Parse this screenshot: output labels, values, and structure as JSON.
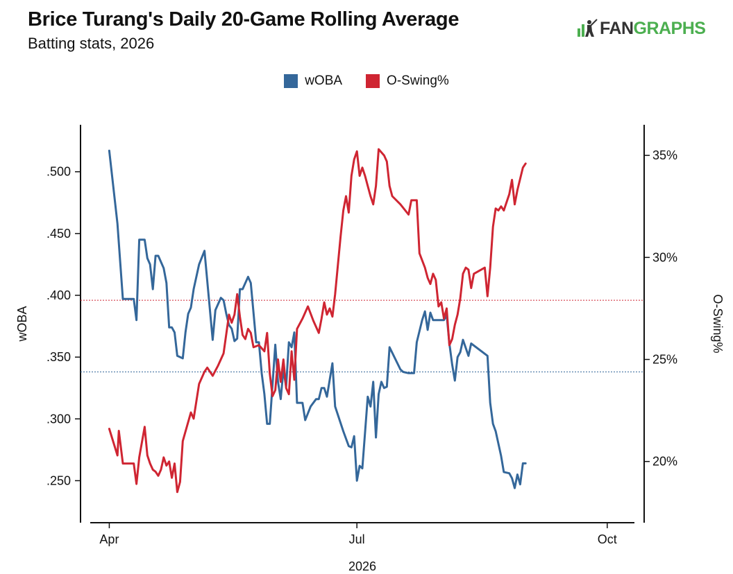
{
  "header": {
    "title": "Brice Turang's Daily 20-Game Rolling Average",
    "subtitle": "Batting stats, 2026",
    "logo_fan": "FAN",
    "logo_graphs": "GRAPHS"
  },
  "colors": {
    "woba": "#34679a",
    "oswing": "#cf2532"
  },
  "chart_data": {
    "type": "line",
    "title": "Brice Turang's Daily 20-Game Rolling Average",
    "subtitle": "Batting stats, 2026",
    "xlabel": "2026",
    "ylabel": "wOBA",
    "y2label": "O-Swing%",
    "x_ticks": [
      "Apr",
      "Jul",
      "Oct"
    ],
    "x_range": [
      -7,
      193
    ],
    "y_ticks": [
      ".250",
      ".300",
      ".350",
      ".400",
      ".450",
      ".500"
    ],
    "y_tick_values": [
      0.25,
      0.3,
      0.35,
      0.4,
      0.45,
      0.5
    ],
    "y_range": [
      0.216,
      0.538
    ],
    "y2_ticks": [
      "20%",
      "25%",
      "30%",
      "35%"
    ],
    "y2_tick_values": [
      20,
      25,
      30,
      35
    ],
    "y2_range": [
      17.0,
      36.5
    ],
    "legend_position": "top-center",
    "grid": false,
    "reference_lines": [
      {
        "series": "wOBA",
        "value": 0.338
      },
      {
        "series": "O-Swing%",
        "value": 27.9
      }
    ],
    "series": [
      {
        "name": "wOBA",
        "axis": "left",
        "points": [
          [
            0,
            0.517
          ],
          [
            3,
            0.458
          ],
          [
            5,
            0.397
          ],
          [
            9,
            0.397
          ],
          [
            10,
            0.38
          ],
          [
            11,
            0.445
          ],
          [
            13,
            0.445
          ],
          [
            14,
            0.43
          ],
          [
            15,
            0.425
          ],
          [
            16,
            0.405
          ],
          [
            17,
            0.432
          ],
          [
            18,
            0.432
          ],
          [
            20,
            0.422
          ],
          [
            21,
            0.41
          ],
          [
            22,
            0.374
          ],
          [
            23,
            0.374
          ],
          [
            24,
            0.37
          ],
          [
            25,
            0.351
          ],
          [
            27,
            0.349
          ],
          [
            28,
            0.37
          ],
          [
            29,
            0.385
          ],
          [
            30,
            0.39
          ],
          [
            31,
            0.405
          ],
          [
            33,
            0.425
          ],
          [
            35,
            0.436
          ],
          [
            38,
            0.364
          ],
          [
            39,
            0.388
          ],
          [
            41,
            0.398
          ],
          [
            42,
            0.396
          ],
          [
            43,
            0.385
          ],
          [
            44,
            0.376
          ],
          [
            45,
            0.373
          ],
          [
            46,
            0.363
          ],
          [
            47,
            0.365
          ],
          [
            48,
            0.405
          ],
          [
            49,
            0.405
          ],
          [
            51,
            0.415
          ],
          [
            52,
            0.41
          ],
          [
            54,
            0.362
          ],
          [
            55,
            0.362
          ],
          [
            56,
            0.337
          ],
          [
            57,
            0.32
          ],
          [
            58,
            0.296
          ],
          [
            59,
            0.296
          ],
          [
            61,
            0.36
          ],
          [
            62,
            0.33
          ],
          [
            63,
            0.316
          ],
          [
            64,
            0.34
          ],
          [
            65,
            0.326
          ],
          [
            66,
            0.362
          ],
          [
            67,
            0.358
          ],
          [
            68,
            0.37
          ],
          [
            69,
            0.313
          ],
          [
            71,
            0.313
          ],
          [
            72,
            0.299
          ],
          [
            74,
            0.31
          ],
          [
            76,
            0.316
          ],
          [
            77,
            0.316
          ],
          [
            78,
            0.325
          ],
          [
            79,
            0.325
          ],
          [
            80,
            0.318
          ],
          [
            82,
            0.345
          ],
          [
            83,
            0.31
          ],
          [
            86,
            0.29
          ],
          [
            88,
            0.278
          ],
          [
            89,
            0.277
          ],
          [
            90,
            0.286
          ],
          [
            91,
            0.25
          ],
          [
            92,
            0.262
          ],
          [
            93,
            0.26
          ],
          [
            95,
            0.318
          ],
          [
            96,
            0.31
          ],
          [
            97,
            0.33
          ],
          [
            98,
            0.285
          ],
          [
            99,
            0.32
          ],
          [
            100,
            0.33
          ],
          [
            101,
            0.325
          ],
          [
            102,
            0.326
          ],
          [
            103,
            0.358
          ],
          [
            107,
            0.34
          ],
          [
            108,
            0.338
          ],
          [
            110,
            0.337
          ],
          [
            112,
            0.337
          ],
          [
            113,
            0.362
          ],
          [
            115,
            0.38
          ],
          [
            116,
            0.387
          ],
          [
            117,
            0.372
          ],
          [
            118,
            0.386
          ],
          [
            119,
            0.38
          ],
          [
            123,
            0.38
          ],
          [
            124,
            0.384
          ],
          [
            125,
            0.361
          ],
          [
            126,
            0.344
          ],
          [
            127,
            0.331
          ],
          [
            128,
            0.35
          ],
          [
            129,
            0.354
          ],
          [
            130,
            0.364
          ],
          [
            132,
            0.351
          ],
          [
            133,
            0.361
          ],
          [
            139,
            0.351
          ],
          [
            140,
            0.313
          ],
          [
            141,
            0.296
          ],
          [
            142,
            0.29
          ],
          [
            144,
            0.27
          ],
          [
            145,
            0.257
          ],
          [
            147,
            0.256
          ],
          [
            148,
            0.252
          ],
          [
            149,
            0.244
          ],
          [
            150,
            0.255
          ],
          [
            151,
            0.247
          ],
          [
            152,
            0.264
          ],
          [
            153,
            0.264
          ]
        ]
      },
      {
        "name": "O-Swing%",
        "axis": "right",
        "points": [
          [
            0,
            21.6
          ],
          [
            3,
            20.3
          ],
          [
            3.5,
            21.5
          ],
          [
            5,
            19.9
          ],
          [
            9,
            19.9
          ],
          [
            10,
            18.9
          ],
          [
            11,
            20.2
          ],
          [
            13,
            21.7
          ],
          [
            14,
            20.3
          ],
          [
            15,
            19.9
          ],
          [
            16,
            19.6
          ],
          [
            17,
            19.5
          ],
          [
            18,
            19.3
          ],
          [
            19,
            19.6
          ],
          [
            20,
            20.2
          ],
          [
            21,
            19.8
          ],
          [
            22,
            20.0
          ],
          [
            23,
            19.2
          ],
          [
            24,
            19.9
          ],
          [
            25,
            18.5
          ],
          [
            26,
            19.0
          ],
          [
            27,
            21.0
          ],
          [
            30,
            22.4
          ],
          [
            31,
            22.1
          ],
          [
            33,
            23.8
          ],
          [
            35,
            24.4
          ],
          [
            36,
            24.6
          ],
          [
            38,
            24.2
          ],
          [
            40,
            24.7
          ],
          [
            42,
            25.3
          ],
          [
            44,
            27.2
          ],
          [
            45,
            26.8
          ],
          [
            46,
            27.2
          ],
          [
            47,
            28.2
          ],
          [
            48,
            27.1
          ],
          [
            49,
            26.2
          ],
          [
            50,
            26.0
          ],
          [
            51,
            26.5
          ],
          [
            52,
            26.3
          ],
          [
            53,
            25.6
          ],
          [
            55,
            25.7
          ],
          [
            57,
            25.4
          ],
          [
            58,
            26.3
          ],
          [
            59,
            24.3
          ],
          [
            60,
            23.2
          ],
          [
            61,
            23.5
          ],
          [
            62,
            25.0
          ],
          [
            63,
            23.9
          ],
          [
            64,
            25.0
          ],
          [
            65,
            23.6
          ],
          [
            66,
            23.3
          ],
          [
            67,
            25.4
          ],
          [
            68,
            24.0
          ],
          [
            69,
            26.5
          ],
          [
            71,
            27.0
          ],
          [
            73,
            27.6
          ],
          [
            75,
            26.9
          ],
          [
            77,
            26.3
          ],
          [
            78,
            27.0
          ],
          [
            79,
            27.8
          ],
          [
            80,
            27.2
          ],
          [
            81,
            27.5
          ],
          [
            82,
            27.1
          ],
          [
            83,
            28.2
          ],
          [
            85,
            31.0
          ],
          [
            86,
            32.3
          ],
          [
            87,
            33.0
          ],
          [
            88,
            32.2
          ],
          [
            89,
            34.0
          ],
          [
            90,
            34.8
          ],
          [
            91,
            35.2
          ],
          [
            92,
            34.0
          ],
          [
            93,
            34.4
          ],
          [
            94,
            34.0
          ],
          [
            95,
            33.5
          ],
          [
            96,
            33.0
          ],
          [
            97,
            32.6
          ],
          [
            98,
            33.5
          ],
          [
            99,
            35.3
          ],
          [
            101,
            35.0
          ],
          [
            102,
            34.7
          ],
          [
            103,
            33.5
          ],
          [
            104,
            33.0
          ],
          [
            107,
            32.6
          ],
          [
            110,
            32.1
          ],
          [
            111,
            32.8
          ],
          [
            113,
            32.8
          ],
          [
            114,
            30.2
          ],
          [
            116,
            29.5
          ],
          [
            117,
            29.0
          ],
          [
            118,
            28.7
          ],
          [
            119,
            29.2
          ],
          [
            120,
            28.9
          ],
          [
            121,
            27.6
          ],
          [
            122,
            27.8
          ],
          [
            123,
            27.0
          ],
          [
            124,
            27.5
          ],
          [
            125,
            25.7
          ],
          [
            126,
            26.0
          ],
          [
            127,
            26.7
          ],
          [
            128,
            27.2
          ],
          [
            129,
            28.0
          ],
          [
            130,
            29.2
          ],
          [
            131,
            29.5
          ],
          [
            132,
            29.4
          ],
          [
            133,
            28.5
          ],
          [
            134,
            29.2
          ],
          [
            138,
            29.5
          ],
          [
            139,
            28.1
          ],
          [
            140,
            29.5
          ],
          [
            141,
            31.5
          ],
          [
            142,
            32.4
          ],
          [
            143,
            32.3
          ],
          [
            144,
            32.5
          ],
          [
            145,
            32.3
          ],
          [
            147,
            33.1
          ],
          [
            148,
            33.8
          ],
          [
            149,
            32.6
          ],
          [
            150,
            33.3
          ],
          [
            152,
            34.4
          ],
          [
            153,
            34.6
          ]
        ]
      }
    ]
  }
}
